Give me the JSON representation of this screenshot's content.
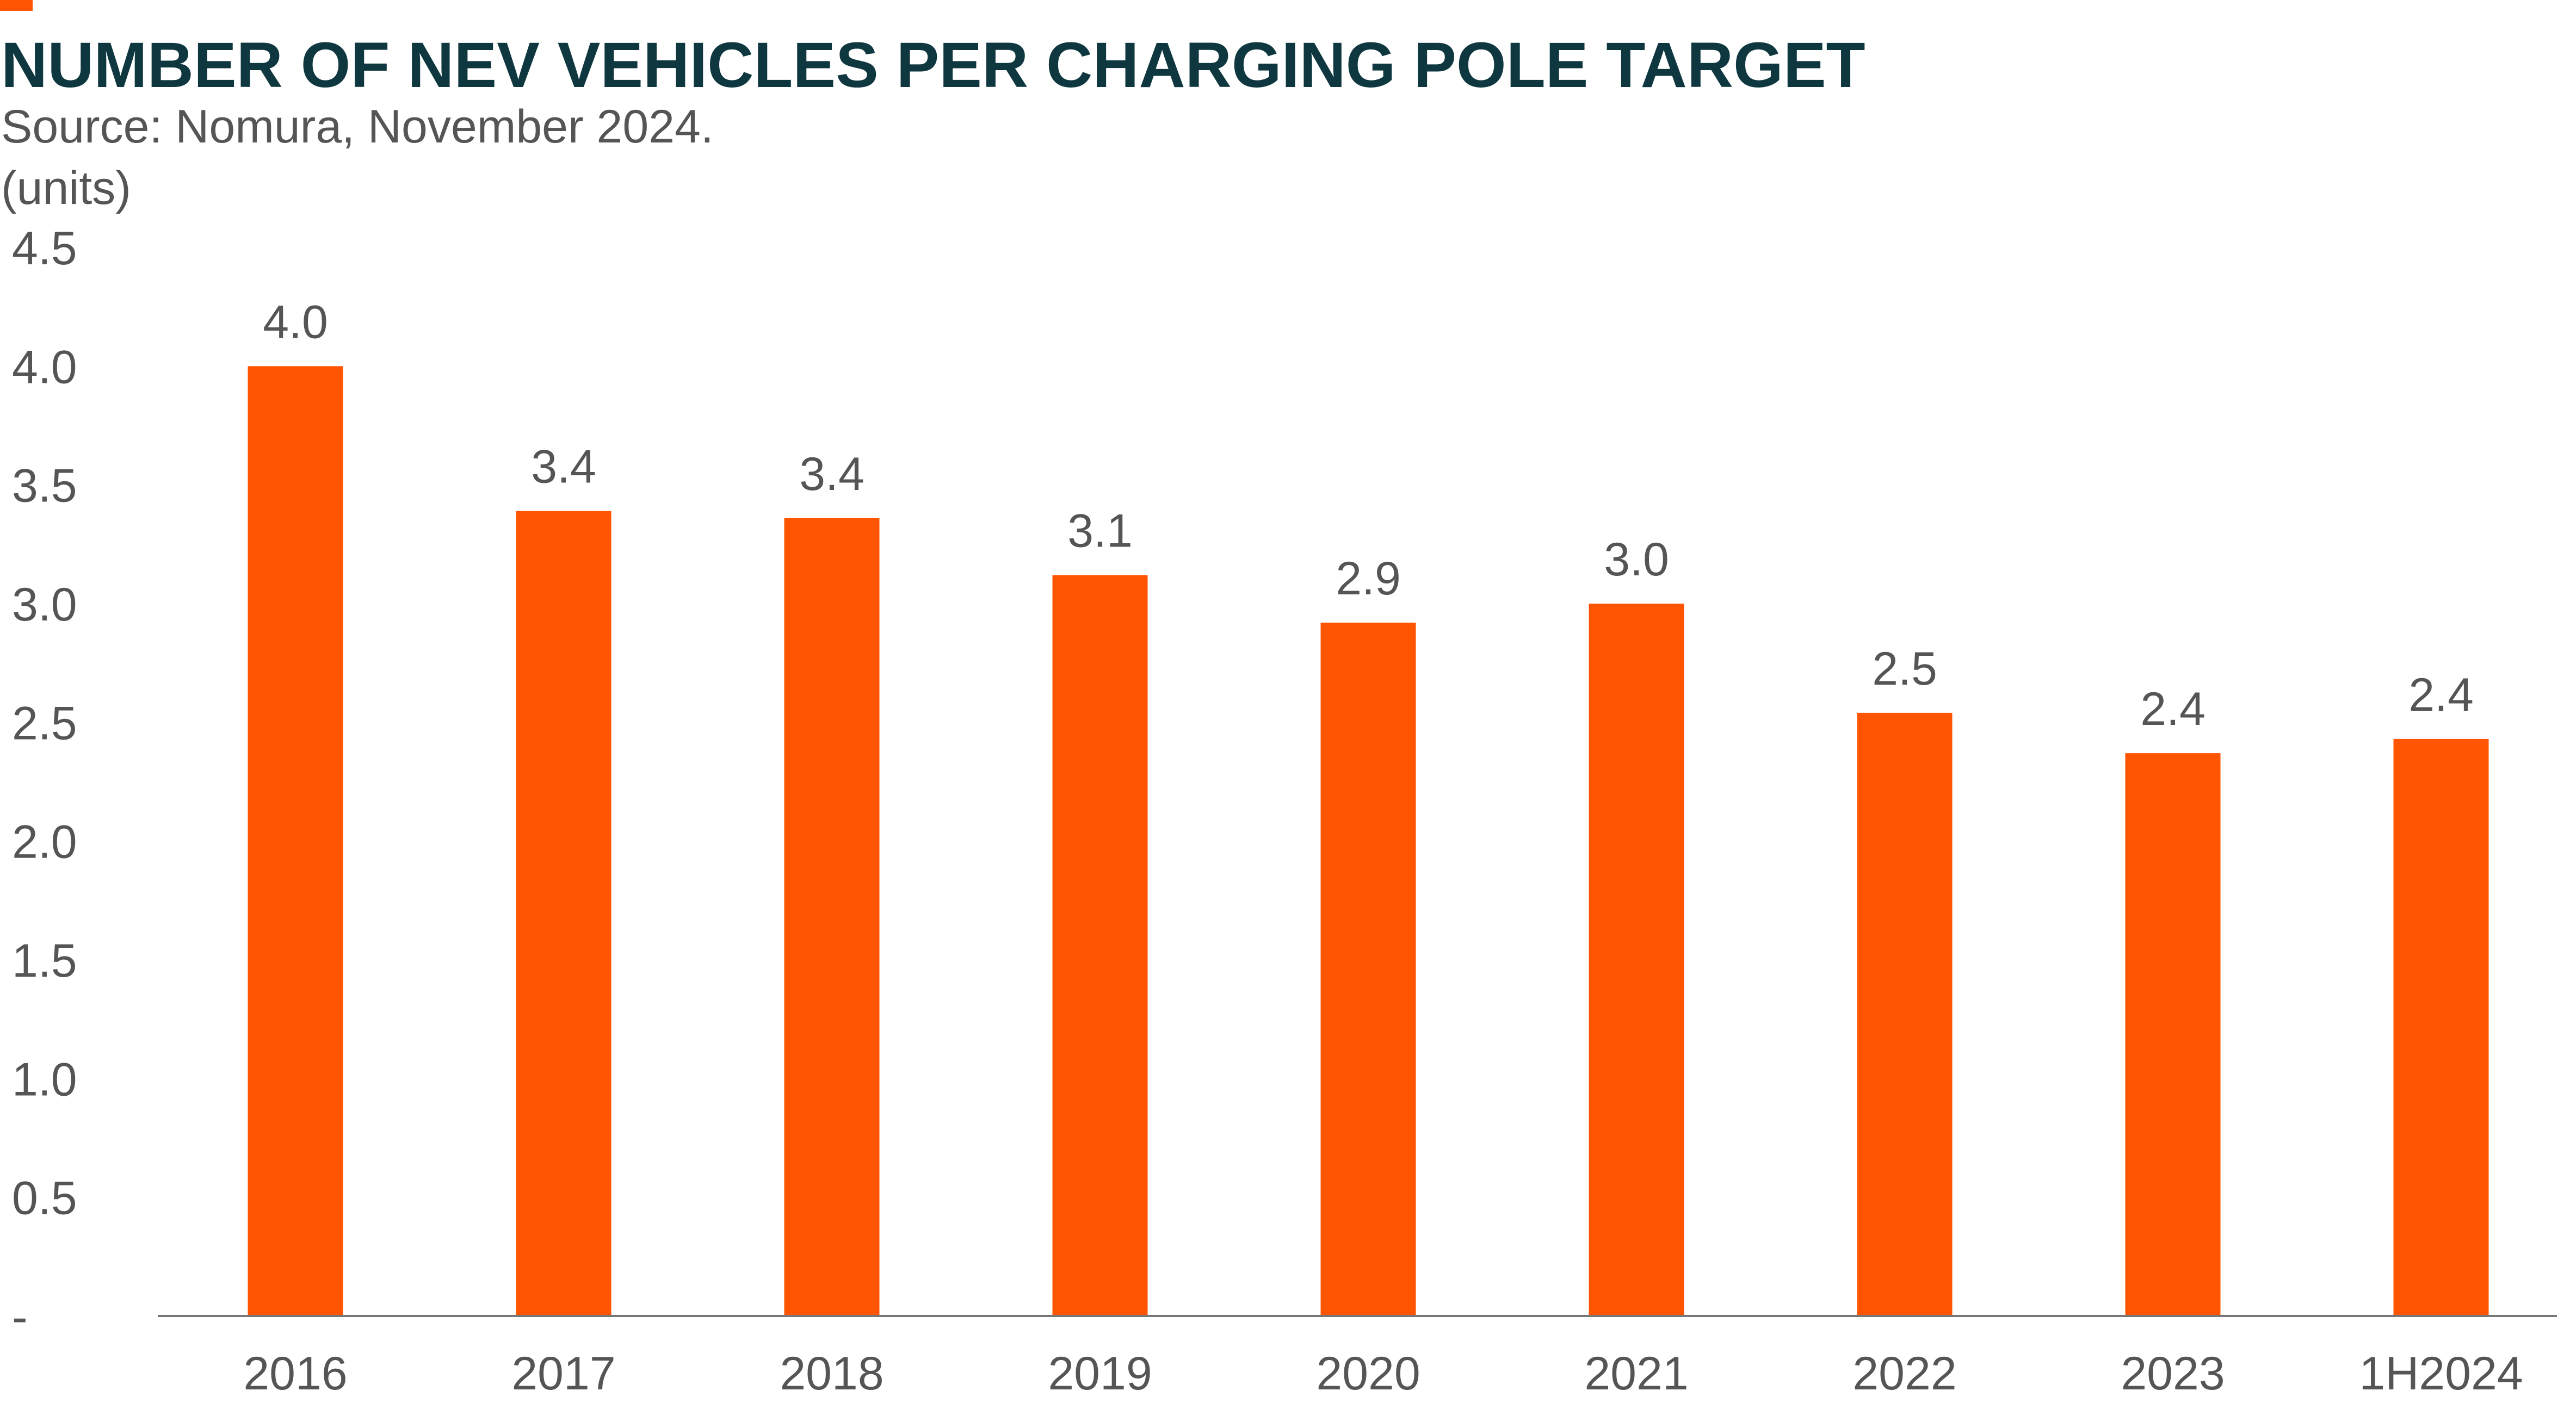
{
  "chart_data": {
    "type": "bar",
    "title": "NUMBER OF NEV VEHICLES PER CHARGING POLE TARGET",
    "subtitle": "Source: Nomura, November 2024.",
    "ylabel": "(units)",
    "categories": [
      "2016",
      "2017",
      "2018",
      "2019",
      "2020",
      "2021",
      "2022",
      "2023",
      "1H2024"
    ],
    "values": [
      4.0,
      3.39,
      3.36,
      3.12,
      2.92,
      3.0,
      2.54,
      2.37,
      2.43
    ],
    "data_labels": [
      "4.0",
      "3.4",
      "3.4",
      "3.1",
      "2.9",
      "3.0",
      "2.5",
      "2.4",
      "2.4"
    ],
    "ylim": [
      0,
      4.5
    ],
    "yticks": [
      0,
      0.5,
      1.0,
      1.5,
      2.0,
      2.5,
      3.0,
      3.5,
      4.0,
      4.5
    ],
    "ytick_labels": [
      "-",
      "0.5",
      "1.0",
      "1.5",
      "2.0",
      "2.5",
      "3.0",
      "3.5",
      "4.0",
      "4.5"
    ],
    "grid": false,
    "legend": "none",
    "colors": {
      "bar": "#ff5500",
      "accent": "#ff5500",
      "title": "#0f3740",
      "text": "#555555",
      "axis": "#777777"
    }
  }
}
